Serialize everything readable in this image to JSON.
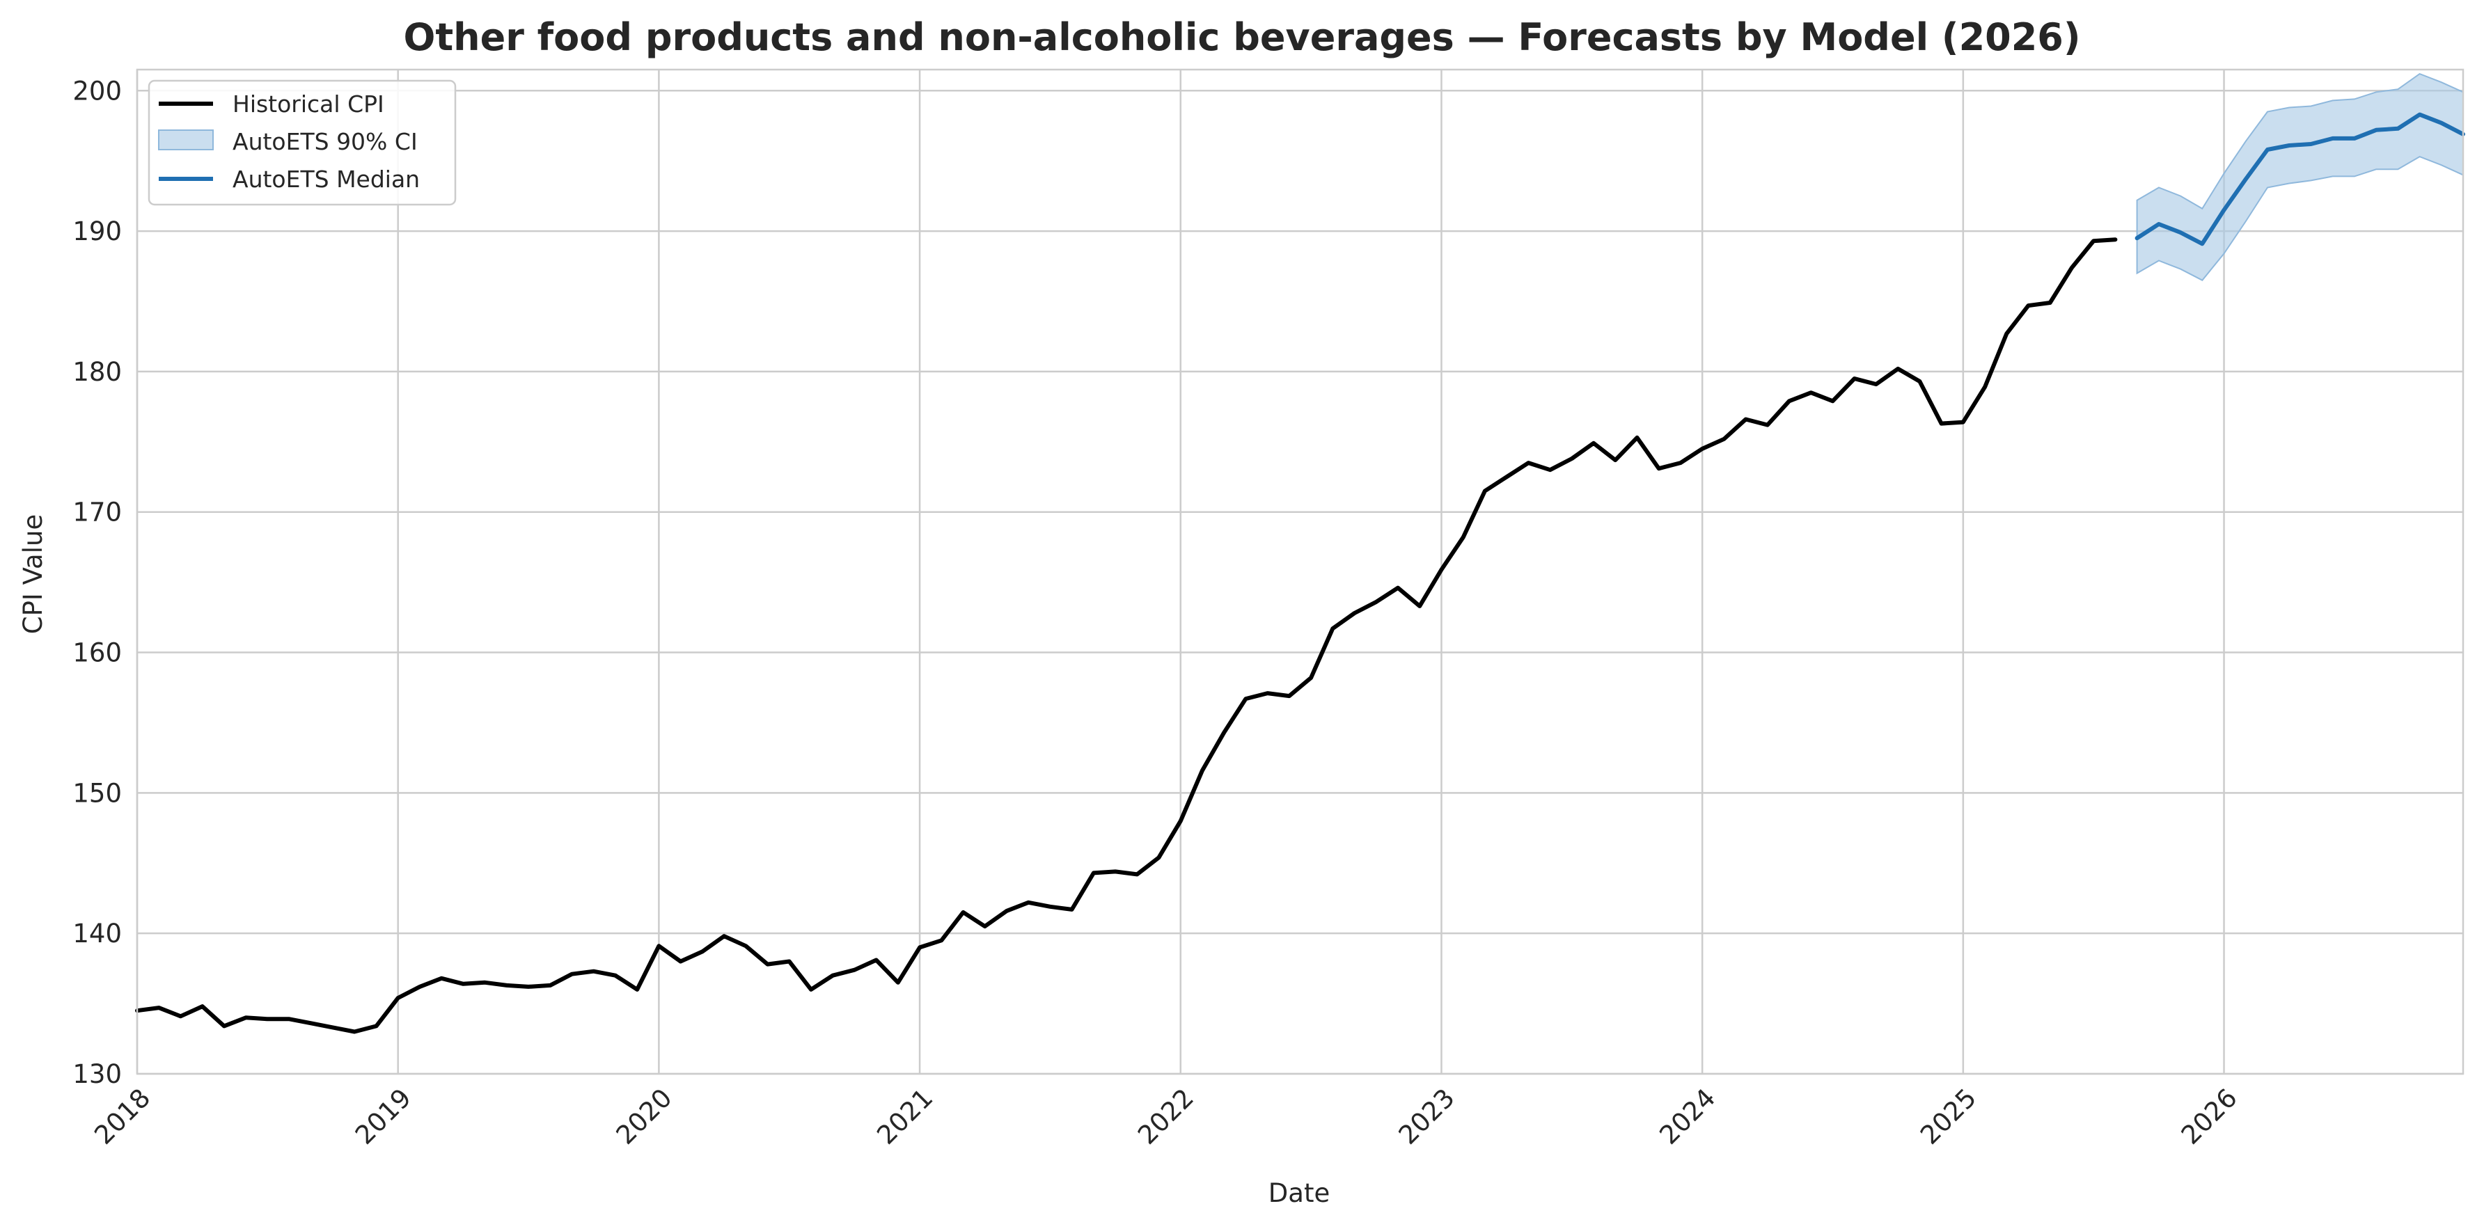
{
  "chart_data": {
    "type": "line",
    "title": "Other food products and non-alcoholic beverages — Forecasts by Model (2026)",
    "xlabel": "Date",
    "ylabel": "CPI Value",
    "ylim": [
      130,
      201.5
    ],
    "xlim": [
      "2018-01",
      "2026-12"
    ],
    "grid": true,
    "legend_position": "top-left",
    "x_ticks": [
      "2018",
      "2019",
      "2020",
      "2021",
      "2022",
      "2023",
      "2024",
      "2025",
      "2026"
    ],
    "y_ticks": [
      130,
      140,
      150,
      160,
      170,
      180,
      190,
      200
    ],
    "colors": {
      "historical": "#000000",
      "median": "#1f6fb2",
      "ci_fill": "#a6c8e4",
      "ci_edge": "#8fb8dc"
    },
    "series": [
      {
        "name": "Historical CPI",
        "x": [
          "2018-01",
          "2018-02",
          "2018-03",
          "2018-04",
          "2018-05",
          "2018-06",
          "2018-07",
          "2018-08",
          "2018-09",
          "2018-10",
          "2018-11",
          "2018-12",
          "2019-01",
          "2019-02",
          "2019-03",
          "2019-04",
          "2019-05",
          "2019-06",
          "2019-07",
          "2019-08",
          "2019-09",
          "2019-10",
          "2019-11",
          "2019-12",
          "2020-01",
          "2020-02",
          "2020-03",
          "2020-04",
          "2020-05",
          "2020-06",
          "2020-07",
          "2020-08",
          "2020-09",
          "2020-10",
          "2020-11",
          "2020-12",
          "2021-01",
          "2021-02",
          "2021-03",
          "2021-04",
          "2021-05",
          "2021-06",
          "2021-07",
          "2021-08",
          "2021-09",
          "2021-10",
          "2021-11",
          "2021-12",
          "2022-01",
          "2022-02",
          "2022-03",
          "2022-04",
          "2022-05",
          "2022-06",
          "2022-07",
          "2022-08",
          "2022-09",
          "2022-10",
          "2022-11",
          "2022-12",
          "2023-01",
          "2023-02",
          "2023-03",
          "2023-04",
          "2023-05",
          "2023-06",
          "2023-07",
          "2023-08",
          "2023-09",
          "2023-10",
          "2023-11",
          "2023-12",
          "2024-01",
          "2024-02",
          "2024-03",
          "2024-04",
          "2024-05",
          "2024-06",
          "2024-07",
          "2024-08",
          "2024-09",
          "2024-10",
          "2024-11",
          "2024-12",
          "2025-01",
          "2025-02",
          "2025-03",
          "2025-04",
          "2025-05",
          "2025-06",
          "2025-07",
          "2025-08"
        ],
        "values": [
          134.5,
          134.7,
          134.1,
          134.8,
          133.4,
          134.0,
          133.9,
          133.9,
          133.6,
          133.3,
          133.0,
          133.4,
          135.4,
          136.2,
          136.8,
          136.4,
          136.5,
          136.3,
          136.2,
          136.3,
          137.1,
          137.3,
          137.0,
          136.0,
          139.1,
          138.0,
          138.7,
          139.8,
          139.1,
          137.8,
          138.0,
          136.0,
          137.0,
          137.4,
          138.1,
          136.5,
          139.0,
          139.5,
          141.5,
          140.5,
          141.6,
          142.2,
          141.9,
          141.7,
          144.3,
          144.4,
          144.2,
          145.4,
          148.0,
          151.6,
          154.3,
          156.7,
          157.1,
          156.9,
          158.2,
          161.7,
          162.8,
          163.6,
          164.6,
          163.3,
          165.9,
          168.2,
          171.5,
          172.5,
          173.5,
          173.0,
          173.8,
          174.9,
          173.7,
          175.3,
          173.1,
          173.5,
          174.5,
          175.2,
          176.6,
          176.2,
          177.9,
          178.5,
          177.9,
          179.5,
          179.1,
          180.2,
          179.3,
          176.3,
          176.4,
          178.9,
          182.7,
          184.7,
          184.9,
          187.4,
          189.3,
          189.4
        ]
      },
      {
        "name": "AutoETS Median",
        "x": [
          "2025-09",
          "2025-10",
          "2025-11",
          "2025-12",
          "2026-01",
          "2026-02",
          "2026-03",
          "2026-04",
          "2026-05",
          "2026-06",
          "2026-07",
          "2026-08",
          "2026-09",
          "2026-10",
          "2026-11",
          "2026-12"
        ],
        "values": [
          189.5,
          190.5,
          189.9,
          189.1,
          191.5,
          193.7,
          195.8,
          196.1,
          196.2,
          196.6,
          196.6,
          197.2,
          197.3,
          198.3,
          197.7,
          196.9
        ]
      },
      {
        "name": "AutoETS 90% CI",
        "x": [
          "2025-09",
          "2025-10",
          "2025-11",
          "2025-12",
          "2026-01",
          "2026-02",
          "2026-03",
          "2026-04",
          "2026-05",
          "2026-06",
          "2026-07",
          "2026-08",
          "2026-09",
          "2026-10",
          "2026-11",
          "2026-12"
        ],
        "lower": [
          187.0,
          187.9,
          187.3,
          186.5,
          188.4,
          190.7,
          193.1,
          193.4,
          193.6,
          193.9,
          193.9,
          194.4,
          194.4,
          195.3,
          194.7,
          194.0
        ],
        "upper": [
          192.2,
          193.1,
          192.5,
          191.6,
          194.1,
          196.4,
          198.5,
          198.8,
          198.9,
          199.3,
          199.4,
          199.9,
          200.1,
          201.2,
          200.6,
          199.9
        ]
      }
    ]
  }
}
